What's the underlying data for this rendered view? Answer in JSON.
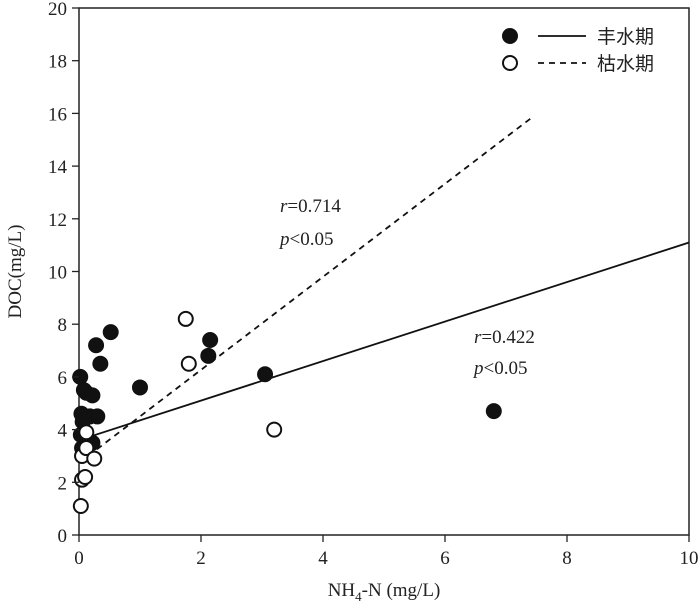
{
  "chart_data": {
    "type": "scatter",
    "xlabel": {
      "main": "NH",
      "sub": "4",
      "rest": "-N (mg/L)"
    },
    "ylabel": "DOC(mg/L)",
    "xlim": [
      0,
      10
    ],
    "ylim": [
      0,
      20
    ],
    "xticks": [
      0,
      2,
      4,
      6,
      8,
      10
    ],
    "yticks": [
      0,
      2,
      4,
      6,
      8,
      10,
      12,
      14,
      16,
      18,
      20
    ],
    "grid": false,
    "legend_position": "top-right",
    "series": [
      {
        "name": "丰水期",
        "marker": "filled-circle",
        "line_style": "solid",
        "color": "#111111",
        "points": [
          [
            0.02,
            6.0
          ],
          [
            0.04,
            4.6
          ],
          [
            0.06,
            4.3
          ],
          [
            0.03,
            3.8
          ],
          [
            0.05,
            3.3
          ],
          [
            0.08,
            5.5
          ],
          [
            0.12,
            5.4
          ],
          [
            0.18,
            4.5
          ],
          [
            0.22,
            5.3
          ],
          [
            0.22,
            3.5
          ],
          [
            0.28,
            7.2
          ],
          [
            0.3,
            4.5
          ],
          [
            0.35,
            6.5
          ],
          [
            0.52,
            7.7
          ],
          [
            1.0,
            5.6
          ],
          [
            2.12,
            6.8
          ],
          [
            2.15,
            7.4
          ],
          [
            3.05,
            6.1
          ],
          [
            6.8,
            4.7
          ]
        ],
        "fit_line": [
          [
            0.0,
            3.6
          ],
          [
            10.0,
            11.1
          ]
        ],
        "annotation": {
          "r_label": "r",
          "r_text": "=0.422",
          "p_label": "p",
          "p_text": "<0.05"
        }
      },
      {
        "name": "枯水期",
        "marker": "open-circle",
        "line_style": "dashed",
        "color": "#111111",
        "points": [
          [
            0.03,
            1.1
          ],
          [
            0.05,
            2.1
          ],
          [
            0.1,
            2.2
          ],
          [
            0.05,
            3.0
          ],
          [
            0.12,
            3.3
          ],
          [
            0.12,
            3.9
          ],
          [
            0.25,
            2.9
          ],
          [
            1.75,
            8.2
          ],
          [
            1.8,
            6.5
          ],
          [
            3.2,
            4.0
          ]
        ],
        "fit_line": [
          [
            0.15,
            3.0
          ],
          [
            7.4,
            15.8
          ]
        ],
        "annotation": {
          "r_label": "r",
          "r_text": "=0.714",
          "p_label": "p",
          "p_text": "<0.05"
        }
      }
    ]
  }
}
